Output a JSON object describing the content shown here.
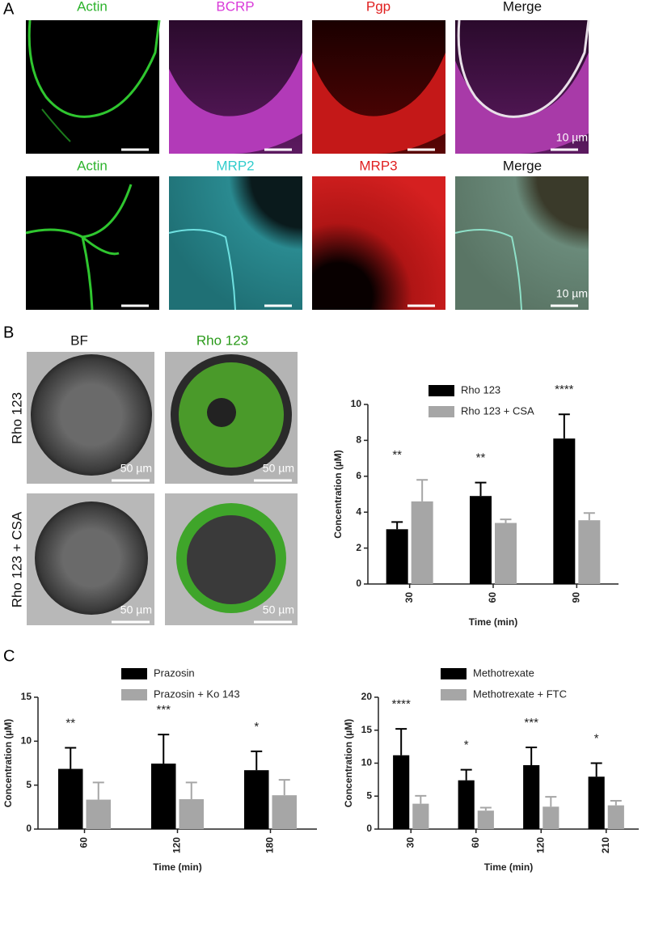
{
  "panels": {
    "a": {
      "label": "A",
      "row1": [
        "Actin",
        "BCRP",
        "Pgp",
        "Merge"
      ],
      "row2": [
        "Actin",
        "MRP2",
        "MRP3",
        "Merge"
      ],
      "scale": "10 µm"
    },
    "b": {
      "label": "B",
      "columns": [
        "BF",
        "Rho 123"
      ],
      "rows": [
        "Rho 123",
        "Rho 123 + CSA"
      ],
      "scale": "50 µm"
    },
    "c": {
      "label": "C"
    }
  },
  "chart_data": [
    {
      "type": "bar",
      "xlabel": "Time (min)",
      "ylabel": "Concentration (µM)",
      "categories": [
        "30",
        "60",
        "90"
      ],
      "series": [
        {
          "name": "Rho 123",
          "color": "#000000",
          "values": [
            3.05,
            4.9,
            8.1
          ],
          "errors": [
            0.4,
            0.75,
            1.35
          ]
        },
        {
          "name": "Rho 123 + CSA",
          "color": "#a6a6a6",
          "values": [
            4.6,
            3.4,
            3.55
          ],
          "errors": [
            1.2,
            0.2,
            0.4
          ]
        }
      ],
      "annotations": [
        "**",
        "**",
        "****"
      ],
      "ylim": [
        0,
        10
      ],
      "yticks": [
        0,
        2,
        4,
        6,
        8,
        10
      ],
      "grid": false
    },
    {
      "type": "bar",
      "xlabel": "Time (min)",
      "ylabel": "Concentration (µM)",
      "categories": [
        "60",
        "120",
        "180"
      ],
      "series": [
        {
          "name": "Prazosin",
          "color": "#000000",
          "values": [
            6.85,
            7.45,
            6.7
          ],
          "errors": [
            2.4,
            3.3,
            2.15
          ]
        },
        {
          "name": "Prazosin + Ko 143",
          "color": "#a6a6a6",
          "values": [
            3.35,
            3.4,
            3.85
          ],
          "errors": [
            1.95,
            1.9,
            1.75
          ]
        }
      ],
      "annotations": [
        "**",
        "***",
        "*"
      ],
      "ylim": [
        0,
        15
      ],
      "yticks": [
        0,
        5,
        10,
        15
      ],
      "grid": false
    },
    {
      "type": "bar",
      "xlabel": "Time (min)",
      "ylabel": "Concentration (µM)",
      "categories": [
        "30",
        "60",
        "120",
        "210"
      ],
      "series": [
        {
          "name": "Methotrexate",
          "color": "#000000",
          "values": [
            11.2,
            7.4,
            9.7,
            7.95
          ],
          "errors": [
            4.0,
            1.6,
            2.7,
            2.05
          ]
        },
        {
          "name": "Methotrexate + FTC",
          "color": "#a6a6a6",
          "values": [
            3.85,
            2.8,
            3.4,
            3.6
          ],
          "errors": [
            1.2,
            0.45,
            1.5,
            0.7
          ]
        }
      ],
      "annotations": [
        "****",
        "*",
        "***",
        "*"
      ],
      "ylim": [
        0,
        20
      ],
      "yticks": [
        0,
        5,
        10,
        15,
        20
      ],
      "grid": false
    }
  ]
}
